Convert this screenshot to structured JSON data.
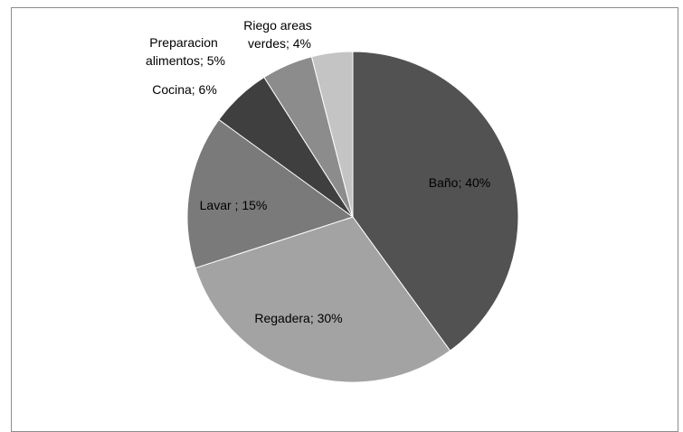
{
  "chart_data": {
    "type": "pie",
    "title": "",
    "legend": "none",
    "slices": [
      {
        "label": "Baño; 40%",
        "name": "Baño",
        "value": 40,
        "color": "#525252"
      },
      {
        "label": "Regadera; 30%",
        "name": "Regadera",
        "value": 30,
        "color": "#a3a3a3"
      },
      {
        "label": "Lavar ; 15%",
        "name": "Lavar",
        "value": 15,
        "color": "#7a7a7a"
      },
      {
        "label": "Cocina; 6%",
        "name": "Cocina",
        "value": 6,
        "color": "#3f3f3f"
      },
      {
        "label": "Preparacion alimentos; 5%",
        "name": "Preparacion alimentos",
        "value": 5,
        "color": "#8c8c8c"
      },
      {
        "label": "Riego areas verdes; 4%",
        "name": "Riego areas verdes",
        "value": 4,
        "color": "#c4c4c4"
      }
    ]
  }
}
